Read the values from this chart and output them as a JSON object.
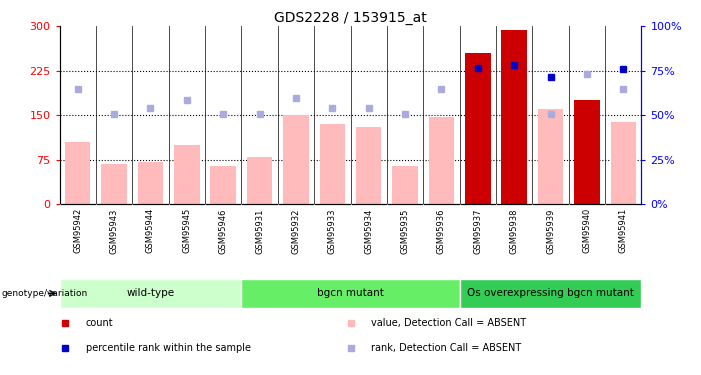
{
  "title": "GDS2228 / 153915_at",
  "samples": [
    "GSM95942",
    "GSM95943",
    "GSM95944",
    "GSM95945",
    "GSM95946",
    "GSM95931",
    "GSM95932",
    "GSM95933",
    "GSM95934",
    "GSM95935",
    "GSM95936",
    "GSM95937",
    "GSM95938",
    "GSM95939",
    "GSM95940",
    "GSM95941"
  ],
  "groups": [
    {
      "label": "wild-type",
      "color": "#ccffcc",
      "start": 0,
      "end": 5
    },
    {
      "label": "bgcn mutant",
      "color": "#66ee66",
      "start": 5,
      "end": 11
    },
    {
      "label": "Os overexpressing bgcn mutant",
      "color": "#33cc55",
      "start": 11,
      "end": 16
    }
  ],
  "absent_value_bars": [
    105,
    68,
    72,
    100,
    65,
    80,
    150,
    135,
    130,
    65,
    148,
    0,
    0,
    160,
    0,
    138
  ],
  "absent_rank_dots": [
    195,
    152,
    162,
    175,
    152,
    152,
    180,
    163,
    163,
    152,
    195,
    0,
    0,
    152,
    220,
    195
  ],
  "count_bars": [
    0,
    0,
    0,
    0,
    0,
    0,
    0,
    0,
    0,
    0,
    0,
    255,
    293,
    0,
    175,
    0
  ],
  "percentile_dots": [
    0,
    0,
    0,
    0,
    0,
    0,
    0,
    0,
    0,
    0,
    0,
    230,
    235,
    215,
    0,
    228
  ],
  "ylim_left": [
    0,
    300
  ],
  "ylim_right": [
    0,
    100
  ],
  "yticks_left": [
    0,
    75,
    150,
    225,
    300
  ],
  "yticks_right": [
    0,
    25,
    50,
    75,
    100
  ],
  "absent_value_color": "#ffbbbb",
  "absent_rank_color": "#aaaadd",
  "count_color": "#cc0000",
  "percentile_color": "#0000cc",
  "hline_color": "black",
  "vline_color": "black",
  "tick_label_bg": "#dddddd",
  "legend_items": [
    {
      "color": "#cc0000",
      "label": "count",
      "marker": "s"
    },
    {
      "color": "#0000cc",
      "label": "percentile rank within the sample",
      "marker": "s"
    },
    {
      "color": "#ffbbbb",
      "label": "value, Detection Call = ABSENT",
      "marker": "s"
    },
    {
      "color": "#aaaadd",
      "label": "rank, Detection Call = ABSENT",
      "marker": "s"
    }
  ]
}
